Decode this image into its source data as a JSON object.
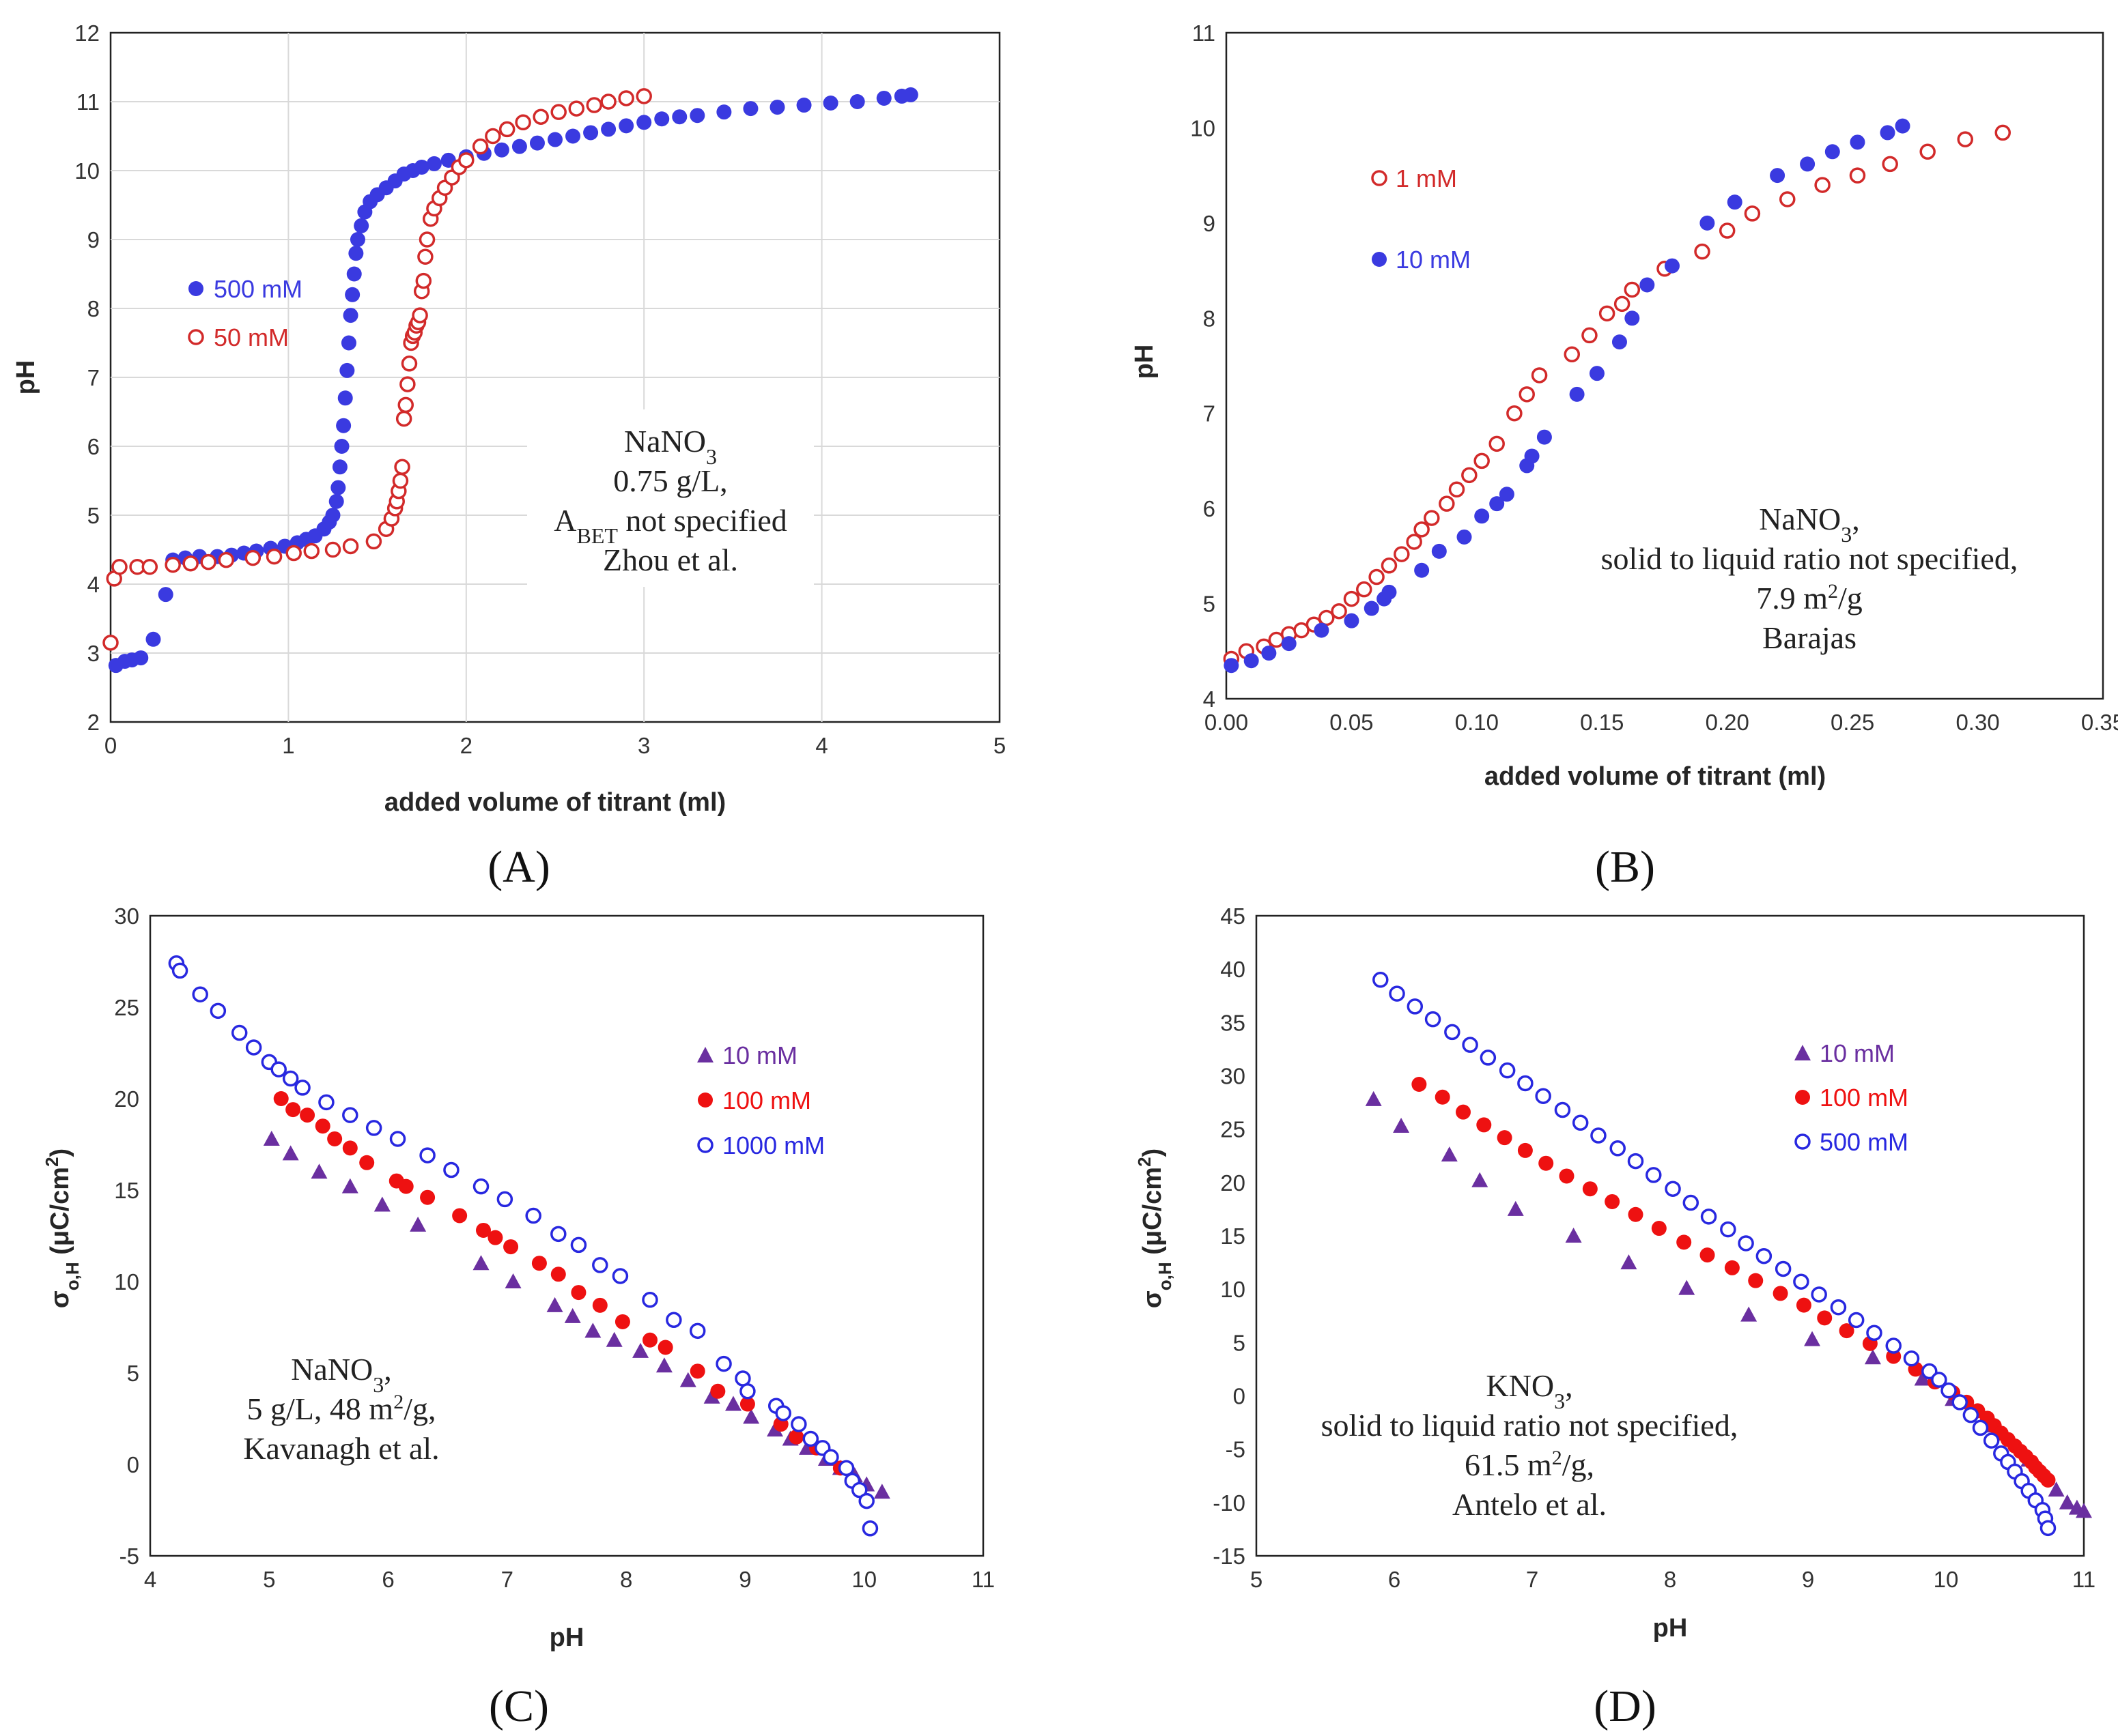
{
  "chart_data": [
    {
      "id": "A",
      "type": "scatter",
      "panel_label": "(A)",
      "xlabel": "added volume of titrant (ml)",
      "ylabel": "pH",
      "xlim": [
        0,
        5
      ],
      "ylim": [
        2,
        12
      ],
      "xticks": [
        0,
        1,
        2,
        3,
        4,
        5
      ],
      "yticks": [
        2,
        3,
        4,
        5,
        6,
        7,
        8,
        9,
        10,
        11,
        12
      ],
      "xtick_labels": [
        "0",
        "1",
        "2",
        "3",
        "4",
        "5"
      ],
      "ytick_labels": [
        "2",
        "3",
        "4",
        "5",
        "6",
        "7",
        "8",
        "9",
        "10",
        "11",
        "12"
      ],
      "grid": true,
      "annotation": {
        "lines": [
          "NaNO3",
          "0.75 g/L,",
          "ABET not specified",
          "Zhou et al."
        ]
      },
      "series": [
        {
          "name": "500 mM",
          "marker": "filled-circle",
          "color": "#3a3ae0",
          "x": [
            0.03,
            0.08,
            0.12,
            0.17,
            0.24,
            0.31,
            0.35,
            0.42,
            0.5,
            0.6,
            0.68,
            0.75,
            0.82,
            0.9,
            0.98,
            1.05,
            1.1,
            1.15,
            1.2,
            1.23,
            1.25,
            1.27,
            1.28,
            1.29,
            1.3,
            1.31,
            1.32,
            1.33,
            1.34,
            1.35,
            1.36,
            1.37,
            1.38,
            1.39,
            1.41,
            1.43,
            1.46,
            1.5,
            1.55,
            1.6,
            1.65,
            1.7,
            1.75,
            1.82,
            1.9,
            2.0,
            2.1,
            2.2,
            2.3,
            2.4,
            2.5,
            2.6,
            2.7,
            2.8,
            2.9,
            3.0,
            3.1,
            3.2,
            3.3,
            3.45,
            3.6,
            3.75,
            3.9,
            4.05,
            4.2,
            4.35,
            4.45,
            4.5
          ],
          "y": [
            2.82,
            2.88,
            2.9,
            2.93,
            3.2,
            3.85,
            4.35,
            4.38,
            4.4,
            4.4,
            4.42,
            4.45,
            4.48,
            4.52,
            4.55,
            4.6,
            4.65,
            4.7,
            4.8,
            4.9,
            5.0,
            5.2,
            5.4,
            5.7,
            6.0,
            6.3,
            6.7,
            7.1,
            7.5,
            7.9,
            8.2,
            8.5,
            8.8,
            9.0,
            9.2,
            9.4,
            9.55,
            9.65,
            9.75,
            9.85,
            9.95,
            10.0,
            10.05,
            10.1,
            10.15,
            10.2,
            10.25,
            10.3,
            10.35,
            10.4,
            10.45,
            10.5,
            10.55,
            10.6,
            10.65,
            10.7,
            10.75,
            10.78,
            10.8,
            10.85,
            10.9,
            10.92,
            10.95,
            10.98,
            11.0,
            11.05,
            11.08,
            11.1
          ]
        },
        {
          "name": "50 mM",
          "marker": "open-circle",
          "color": "#d22a2a",
          "x": [
            0.0,
            0.02,
            0.05,
            0.15,
            0.22,
            0.35,
            0.45,
            0.55,
            0.65,
            0.8,
            0.92,
            1.03,
            1.13,
            1.25,
            1.35,
            1.48,
            1.55,
            1.58,
            1.6,
            1.61,
            1.62,
            1.63,
            1.64,
            1.65,
            1.66,
            1.67,
            1.68,
            1.69,
            1.7,
            1.71,
            1.72,
            1.73,
            1.74,
            1.75,
            1.76,
            1.77,
            1.78,
            1.8,
            1.82,
            1.85,
            1.88,
            1.92,
            1.96,
            2.0,
            2.08,
            2.15,
            2.23,
            2.32,
            2.42,
            2.52,
            2.62,
            2.72,
            2.8,
            2.9,
            3.0
          ],
          "y": [
            3.15,
            4.08,
            4.25,
            4.25,
            4.25,
            4.28,
            4.3,
            4.32,
            4.35,
            4.38,
            4.4,
            4.45,
            4.48,
            4.5,
            4.55,
            4.62,
            4.8,
            4.95,
            5.1,
            5.2,
            5.35,
            5.5,
            5.7,
            6.4,
            6.6,
            6.9,
            7.2,
            7.5,
            7.6,
            7.65,
            7.75,
            7.8,
            7.9,
            8.25,
            8.4,
            8.75,
            9.0,
            9.3,
            9.45,
            9.6,
            9.75,
            9.9,
            10.05,
            10.15,
            10.35,
            10.5,
            10.6,
            10.7,
            10.78,
            10.85,
            10.9,
            10.95,
            11.0,
            11.05,
            11.08
          ]
        }
      ]
    },
    {
      "id": "B",
      "type": "scatter",
      "panel_label": "(B)",
      "xlabel": "added volume of titrant (ml)",
      "ylabel": "pH",
      "xlim": [
        0,
        0.35
      ],
      "ylim": [
        4,
        11
      ],
      "xticks": [
        0,
        0.05,
        0.1,
        0.15,
        0.2,
        0.25,
        0.3,
        0.35
      ],
      "yticks": [
        4,
        5,
        6,
        7,
        8,
        9,
        10,
        11
      ],
      "xtick_labels": [
        "0.00",
        "0.05",
        "0.10",
        "0.15",
        "0.20",
        "0.25",
        "0.30",
        "0.35"
      ],
      "ytick_labels": [
        "4",
        "5",
        "6",
        "7",
        "8",
        "9",
        "10",
        "11"
      ],
      "grid": false,
      "annotation": {
        "lines": [
          "NaNO3,",
          "solid to liquid ratio not specified,",
          "7.9 m2/g",
          "Barajas"
        ]
      },
      "series": [
        {
          "name": "1 mM",
          "marker": "open-circle",
          "color": "#d22a2a",
          "x": [
            0.002,
            0.008,
            0.015,
            0.02,
            0.025,
            0.03,
            0.035,
            0.04,
            0.045,
            0.05,
            0.055,
            0.06,
            0.065,
            0.07,
            0.075,
            0.078,
            0.082,
            0.088,
            0.092,
            0.097,
            0.102,
            0.108,
            0.115,
            0.12,
            0.125,
            0.138,
            0.145,
            0.152,
            0.158,
            0.162,
            0.175,
            0.19,
            0.2,
            0.21,
            0.224,
            0.238,
            0.252,
            0.265,
            0.28,
            0.295,
            0.31
          ],
          "y": [
            4.42,
            4.5,
            4.55,
            4.62,
            4.68,
            4.72,
            4.78,
            4.85,
            4.92,
            5.05,
            5.15,
            5.28,
            5.4,
            5.52,
            5.65,
            5.78,
            5.9,
            6.05,
            6.2,
            6.35,
            6.5,
            6.68,
            7.0,
            7.2,
            7.4,
            7.62,
            7.82,
            8.05,
            8.15,
            8.3,
            8.52,
            8.7,
            8.92,
            9.1,
            9.25,
            9.4,
            9.5,
            9.62,
            9.75,
            9.88,
            9.95
          ]
        },
        {
          "name": "10 mM",
          "marker": "filled-circle",
          "color": "#3a3ae0",
          "x": [
            0.002,
            0.01,
            0.017,
            0.025,
            0.038,
            0.05,
            0.058,
            0.063,
            0.065,
            0.078,
            0.085,
            0.095,
            0.102,
            0.108,
            0.112,
            0.12,
            0.122,
            0.127,
            0.14,
            0.148,
            0.157,
            0.162,
            0.168,
            0.178,
            0.192,
            0.203,
            0.22,
            0.232,
            0.242,
            0.252,
            0.264,
            0.27
          ],
          "y": [
            4.35,
            4.4,
            4.48,
            4.58,
            4.72,
            4.82,
            4.95,
            5.05,
            5.12,
            5.35,
            5.55,
            5.7,
            5.92,
            6.05,
            6.15,
            6.45,
            6.55,
            6.75,
            7.2,
            7.42,
            7.75,
            8.0,
            8.35,
            8.55,
            9.0,
            9.22,
            9.5,
            9.62,
            9.75,
            9.85,
            9.95,
            10.02
          ]
        }
      ]
    },
    {
      "id": "C",
      "type": "scatter",
      "panel_label": "(C)",
      "xlabel": "pH",
      "ylabel": "σo,H (μC/cm2)",
      "xlim": [
        4,
        11
      ],
      "ylim": [
        -5,
        30
      ],
      "xticks": [
        4,
        5,
        6,
        7,
        8,
        9,
        10,
        11
      ],
      "yticks": [
        -5,
        0,
        5,
        10,
        15,
        20,
        25,
        30
      ],
      "xtick_labels": [
        "4",
        "5",
        "6",
        "7",
        "8",
        "9",
        "10",
        "11"
      ],
      "ytick_labels": [
        "-5",
        "0",
        "5",
        "10",
        "15",
        "20",
        "25",
        "30"
      ],
      "grid": false,
      "annotation": {
        "lines": [
          "NaNO3,",
          "5 g/L, 48 m2/g,",
          "Kavanagh et al."
        ]
      },
      "series": [
        {
          "name": "10 mM",
          "marker": "triangle",
          "color": "#6a2fa0",
          "x": [
            5.02,
            5.18,
            5.42,
            5.68,
            5.95,
            6.25,
            6.78,
            7.05,
            7.4,
            7.55,
            7.72,
            7.9,
            8.12,
            8.32,
            8.52,
            8.72,
            8.9,
            9.05,
            9.25,
            9.38,
            9.52,
            9.68,
            9.8,
            9.92,
            10.02,
            10.15
          ],
          "y": [
            17.8,
            17.0,
            16.0,
            15.2,
            14.2,
            13.1,
            11.0,
            10.0,
            8.7,
            8.1,
            7.3,
            6.8,
            6.2,
            5.4,
            4.6,
            3.7,
            3.3,
            2.6,
            1.9,
            1.4,
            0.9,
            0.3,
            -0.2,
            -0.6,
            -1.1,
            -1.5
          ]
        },
        {
          "name": "100 mM",
          "marker": "filled-circle",
          "color": "#ee1111",
          "x": [
            5.1,
            5.2,
            5.32,
            5.45,
            5.55,
            5.68,
            5.82,
            6.07,
            6.15,
            6.33,
            6.6,
            6.8,
            6.9,
            7.03,
            7.27,
            7.43,
            7.6,
            7.78,
            7.97,
            8.2,
            8.33,
            8.6,
            8.77,
            9.02,
            9.3,
            9.43,
            9.6,
            9.8
          ],
          "y": [
            20.0,
            19.4,
            19.1,
            18.5,
            17.8,
            17.3,
            16.5,
            15.5,
            15.2,
            14.6,
            13.6,
            12.8,
            12.4,
            11.9,
            11.0,
            10.4,
            9.4,
            8.7,
            7.8,
            6.8,
            6.4,
            5.1,
            4.0,
            3.3,
            2.2,
            1.5,
            0.9,
            -0.2
          ]
        },
        {
          "name": "1000 mM",
          "marker": "open-circle",
          "color": "#2828e0",
          "x": [
            4.22,
            4.25,
            4.42,
            4.57,
            4.75,
            4.87,
            5.0,
            5.08,
            5.18,
            5.28,
            5.48,
            5.68,
            5.88,
            6.08,
            6.33,
            6.53,
            6.78,
            6.98,
            7.22,
            7.43,
            7.6,
            7.78,
            7.95,
            8.2,
            8.4,
            8.6,
            8.82,
            8.98,
            9.02,
            9.26,
            9.32,
            9.45,
            9.55,
            9.65,
            9.72,
            9.85,
            9.9,
            9.96,
            10.02,
            10.05
          ],
          "y": [
            27.4,
            27.0,
            25.7,
            24.8,
            23.6,
            22.8,
            22.0,
            21.6,
            21.1,
            20.6,
            19.8,
            19.1,
            18.4,
            17.8,
            16.9,
            16.1,
            15.2,
            14.5,
            13.6,
            12.6,
            12.0,
            10.9,
            10.3,
            9.0,
            7.9,
            7.3,
            5.5,
            4.7,
            4.0,
            3.2,
            2.8,
            2.2,
            1.4,
            0.9,
            0.4,
            -0.2,
            -0.9,
            -1.4,
            -2.0,
            -3.5
          ]
        }
      ]
    },
    {
      "id": "D",
      "type": "scatter",
      "panel_label": "(D)",
      "xlabel": "pH",
      "ylabel": "σo,H (μC/cm2)",
      "xlim": [
        5,
        11
      ],
      "ylim": [
        -15,
        45
      ],
      "xticks": [
        5,
        6,
        7,
        8,
        9,
        10,
        11
      ],
      "yticks": [
        -15,
        -10,
        -5,
        0,
        5,
        10,
        15,
        20,
        25,
        30,
        35,
        40,
        45
      ],
      "xtick_labels": [
        "5",
        "6",
        "7",
        "8",
        "9",
        "10",
        "11"
      ],
      "ytick_labels": [
        "-15",
        "-10",
        "-5",
        "0",
        "5",
        "10",
        "15",
        "20",
        "25",
        "30",
        "35",
        "40",
        "45"
      ],
      "grid": false,
      "annotation": {
        "lines": [
          "KNO3,",
          "solid to liquid ratio not specified,",
          "61.5 m2/g,",
          "Antelo et al."
        ]
      },
      "series": [
        {
          "name": "10 mM",
          "marker": "triangle",
          "color": "#6a2fa0",
          "x": [
            5.85,
            6.05,
            6.4,
            6.62,
            6.88,
            7.3,
            7.7,
            8.12,
            8.57,
            9.03,
            9.47,
            9.83,
            10.05,
            10.3,
            10.6,
            10.8,
            10.88,
            10.95,
            11.0
          ],
          "y": [
            27.8,
            25.3,
            22.6,
            20.2,
            17.5,
            15.0,
            12.5,
            10.1,
            7.6,
            5.3,
            3.6,
            1.6,
            -0.3,
            -2.8,
            -6.0,
            -8.8,
            -10.0,
            -10.5,
            -10.8
          ]
        },
        {
          "name": "100 mM",
          "marker": "filled-circle",
          "color": "#ee1111",
          "x": [
            6.18,
            6.35,
            6.5,
            6.65,
            6.8,
            6.95,
            7.1,
            7.25,
            7.42,
            7.58,
            7.75,
            7.92,
            8.1,
            8.27,
            8.45,
            8.62,
            8.8,
            8.97,
            9.12,
            9.28,
            9.45,
            9.62,
            9.78,
            9.92,
            10.05,
            10.15,
            10.23,
            10.3,
            10.35,
            10.4,
            10.45,
            10.5,
            10.54,
            10.58,
            10.62,
            10.65,
            10.68,
            10.71,
            10.74
          ],
          "y": [
            29.2,
            28.0,
            26.6,
            25.4,
            24.2,
            23.0,
            21.8,
            20.6,
            19.4,
            18.2,
            17.0,
            15.7,
            14.4,
            13.2,
            12.0,
            10.8,
            9.6,
            8.5,
            7.3,
            6.1,
            4.9,
            3.7,
            2.5,
            1.3,
            0.3,
            -0.6,
            -1.4,
            -2.1,
            -2.8,
            -3.5,
            -4.1,
            -4.7,
            -5.2,
            -5.7,
            -6.2,
            -6.7,
            -7.1,
            -7.5,
            -7.9
          ]
        },
        {
          "name": "500 mM",
          "marker": "open-circle",
          "color": "#2828e0",
          "x": [
            5.9,
            6.02,
            6.15,
            6.28,
            6.42,
            6.55,
            6.68,
            6.82,
            6.95,
            7.08,
            7.22,
            7.35,
            7.48,
            7.62,
            7.75,
            7.88,
            8.02,
            8.15,
            8.28,
            8.42,
            8.55,
            8.68,
            8.82,
            8.95,
            9.08,
            9.22,
            9.35,
            9.48,
            9.62,
            9.75,
            9.88,
            9.95,
            10.02,
            10.1,
            10.18,
            10.25,
            10.33,
            10.4,
            10.45,
            10.5,
            10.55,
            10.6,
            10.65,
            10.7,
            10.72,
            10.74
          ],
          "y": [
            39.0,
            37.7,
            36.5,
            35.3,
            34.1,
            32.9,
            31.7,
            30.5,
            29.3,
            28.1,
            26.8,
            25.6,
            24.4,
            23.2,
            22.0,
            20.7,
            19.4,
            18.1,
            16.8,
            15.6,
            14.3,
            13.1,
            11.9,
            10.7,
            9.5,
            8.3,
            7.1,
            5.9,
            4.7,
            3.5,
            2.3,
            1.5,
            0.5,
            -0.6,
            -1.8,
            -3.0,
            -4.2,
            -5.4,
            -6.2,
            -7.1,
            -8.0,
            -8.9,
            -9.8,
            -10.7,
            -11.5,
            -12.4
          ]
        }
      ]
    }
  ]
}
